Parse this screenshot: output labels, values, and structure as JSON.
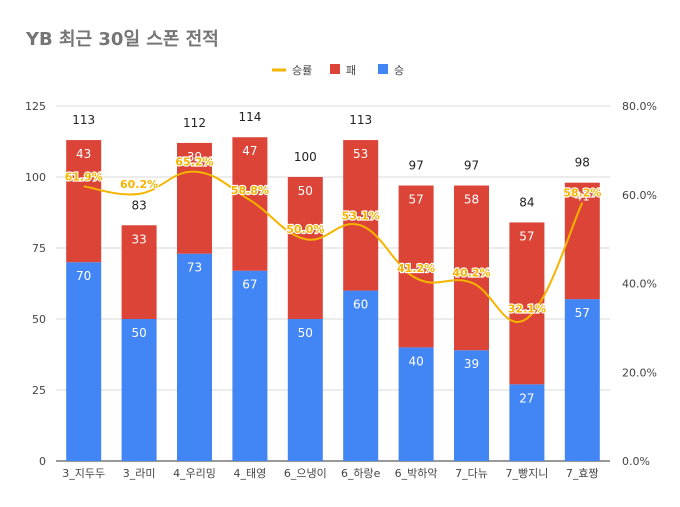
{
  "chart_data": {
    "type": "bar",
    "title": "YB 최근 30일 스폰 전적",
    "categories": [
      "3_지두두",
      "3_라미",
      "4_우리밍",
      "4_태영",
      "6_으냉이",
      "6_하랑e",
      "6_박하악",
      "7_다뉴",
      "7_빵지니",
      "7_효짱"
    ],
    "series": [
      {
        "name": "승",
        "values": [
          70,
          50,
          73,
          67,
          50,
          60,
          40,
          39,
          27,
          57
        ],
        "color": "#4285f4"
      },
      {
        "name": "패",
        "values": [
          43,
          33,
          39,
          47,
          50,
          53,
          57,
          58,
          57,
          41
        ],
        "color": "#db4437"
      }
    ],
    "totals": [
      113,
      83,
      112,
      114,
      100,
      113,
      97,
      97,
      84,
      98
    ],
    "line": {
      "name": "승률",
      "values": [
        61.9,
        60.2,
        65.2,
        58.8,
        50.0,
        53.1,
        41.2,
        40.2,
        32.1,
        58.2
      ],
      "labels": [
        "61.9%",
        "60.2%",
        "65.2%",
        "58.8%",
        "50.0%",
        "53.1%",
        "41.2%",
        "40.2%",
        "32.1%",
        "58.2%"
      ],
      "color": "#f4b400"
    },
    "legend_order": [
      "승률",
      "패",
      "승"
    ],
    "legend_position": "top",
    "ylim": [
      0,
      125
    ],
    "yticks": [
      0,
      25,
      50,
      75,
      100,
      125
    ],
    "y2lim": [
      0,
      80
    ],
    "y2ticks": [
      "0.0%",
      "20.0%",
      "40.0%",
      "60.0%",
      "80.0%"
    ],
    "y2tick_values": [
      0,
      20,
      40,
      60,
      80
    ],
    "grid": true
  }
}
